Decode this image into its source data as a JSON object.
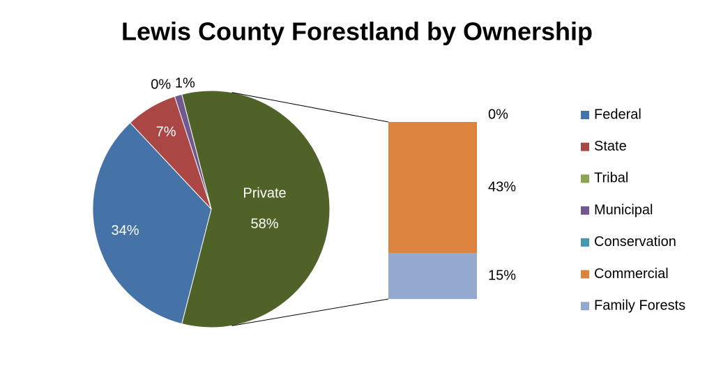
{
  "chart_data": {
    "type": "pie-of-bar",
    "title": "Lewis County Forestland by Ownership",
    "categories": [
      "Federal",
      "State",
      "Tribal",
      "Municipal"
    ],
    "values": [
      34,
      7,
      0,
      1
    ],
    "value_labels": [
      "34%",
      "7%",
      "0%",
      "1%"
    ],
    "colors": [
      "#4572a7",
      "#aa4643",
      "#89a54e",
      "#71588f"
    ],
    "other": {
      "name": "Private",
      "value": 58,
      "value_label": "58%",
      "color": "#4f6228",
      "categories": [
        "Conservation",
        "Commercial",
        "Family Forests"
      ],
      "values": [
        0,
        43,
        15
      ],
      "value_labels": [
        "0%",
        "43%",
        "15%"
      ],
      "colors": [
        "#4198af",
        "#db843d",
        "#93a9cf"
      ]
    }
  }
}
